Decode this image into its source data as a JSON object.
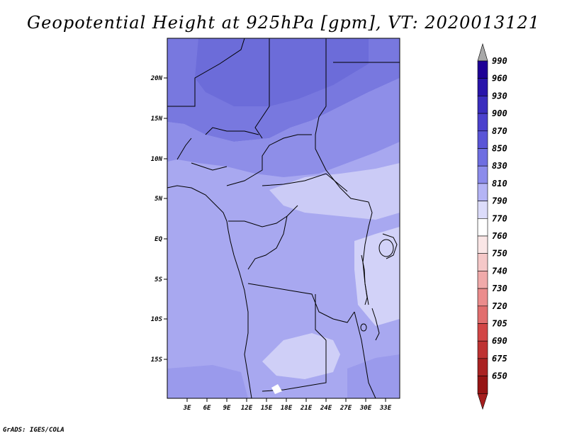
{
  "title": "Geopotential Height at 925hPa [gpm], VT: 2020013121",
  "credit": "GrADS: IGES/COLA",
  "map": {
    "lat_labels": [
      "20N",
      "15N",
      "10N",
      "5N",
      "EQ",
      "5S",
      "10S",
      "15S"
    ],
    "lon_labels": [
      "3E",
      "6E",
      "9E",
      "12E",
      "15E",
      "18E",
      "21E",
      "24E",
      "27E",
      "30E",
      "33E"
    ]
  },
  "colorbar": {
    "levels": [
      "990",
      "960",
      "930",
      "900",
      "870",
      "850",
      "830",
      "810",
      "790",
      "770",
      "760",
      "750",
      "740",
      "730",
      "720",
      "705",
      "690",
      "675",
      "650"
    ],
    "colors": [
      "#1e0096",
      "#2814aa",
      "#3a2dbe",
      "#4b41cd",
      "#5a55d7",
      "#6e6ee1",
      "#8c8ceb",
      "#b4b4f5",
      "#dcdcfa",
      "#ffffff",
      "#fae6e6",
      "#f5c8c8",
      "#f0aaaa",
      "#eb8c8c",
      "#e16e6e",
      "#d24646",
      "#be3232",
      "#aa2222",
      "#961414"
    ],
    "top_arrow_color": "#a8a8a8",
    "bottom_arrow_color": "#a51e1e"
  }
}
